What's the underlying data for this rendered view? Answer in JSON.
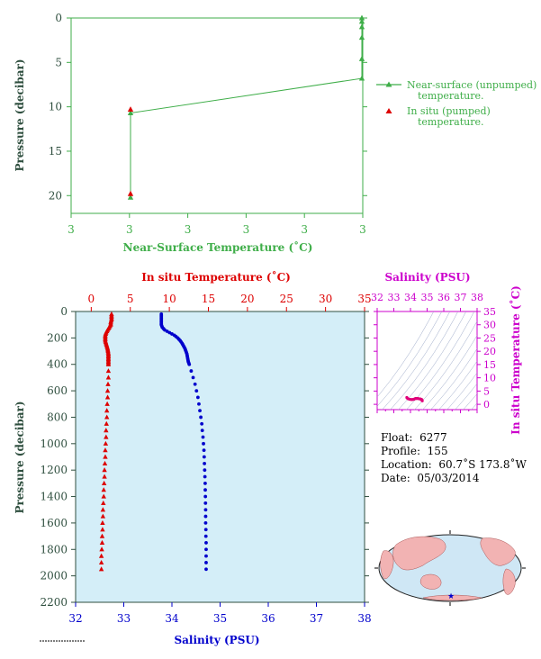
{
  "chart_data": [
    {
      "type": "line",
      "xlabel": "Near-Surface Temperature (˚C)",
      "ylabel": "Pressure (decibar)",
      "x_ticks": [
        "3",
        "3",
        "3",
        "3",
        "3",
        "3"
      ],
      "y_ticks": [
        0,
        5,
        10,
        15,
        20
      ],
      "ylim": [
        0,
        22
      ],
      "y_inverted": true,
      "legend_position": "right",
      "series": [
        {
          "name": "Near-surface (unpumped) temperature.",
          "marker": "triangle",
          "color": "#3fae49",
          "points": [
            [
              1.0,
              0.0
            ],
            [
              1.0,
              0.4
            ],
            [
              1.0,
              1.0
            ],
            [
              1.0,
              2.2
            ],
            [
              1.0,
              4.6
            ],
            [
              1.0,
              6.8
            ],
            [
              0.0,
              10.7
            ],
            [
              0.0,
              20.2
            ]
          ]
        },
        {
          "name": "In situ (pumped) temperature.",
          "marker": "triangle",
          "color": "#dd0000",
          "points": [
            [
              0.0,
              10.3
            ],
            [
              0.0,
              19.8
            ]
          ]
        }
      ]
    },
    {
      "type": "line",
      "ylabel": "Pressure (decibar)",
      "ylim": [
        0,
        2200
      ],
      "y_inverted": true,
      "y_ticks": [
        0,
        200,
        400,
        600,
        800,
        1000,
        1200,
        1400,
        1600,
        1800,
        2000,
        2200
      ],
      "top_axis": {
        "label": "In situ Temperature (˚C)",
        "range": [
          -2,
          35
        ],
        "ticks": [
          0,
          5,
          10,
          15,
          20,
          25,
          30,
          35
        ]
      },
      "bottom_axis": {
        "label": "Salinity (PSU)",
        "range": [
          32,
          38
        ],
        "ticks": [
          32,
          33,
          34,
          35,
          36,
          37,
          38
        ]
      },
      "series": [
        {
          "name": "Temperature",
          "axis": "top",
          "color": "#dd0000",
          "pressure": [
            20,
            40,
            60,
            80,
            100,
            120,
            140,
            160,
            180,
            200,
            220,
            240,
            260,
            280,
            300,
            320,
            340,
            360,
            380,
            400,
            450,
            500,
            550,
            600,
            650,
            700,
            750,
            800,
            850,
            900,
            950,
            1000,
            1050,
            1100,
            1150,
            1200,
            1250,
            1300,
            1350,
            1400,
            1450,
            1500,
            1550,
            1600,
            1650,
            1700,
            1750,
            1800,
            1850,
            1900,
            1950
          ],
          "values": [
            2.6,
            2.6,
            2.6,
            2.5,
            2.5,
            2.3,
            2.1,
            1.9,
            1.8,
            1.8,
            1.8,
            1.9,
            2.0,
            2.1,
            2.15,
            2.2,
            2.2,
            2.2,
            2.2,
            2.2,
            2.2,
            2.2,
            2.15,
            2.1,
            2.1,
            2.05,
            2.0,
            2.0,
            1.95,
            1.9,
            1.9,
            1.85,
            1.8,
            1.8,
            1.75,
            1.7,
            1.7,
            1.65,
            1.6,
            1.6,
            1.55,
            1.5,
            1.5,
            1.45,
            1.45,
            1.4,
            1.4,
            1.35,
            1.3,
            1.3,
            1.3
          ]
        },
        {
          "name": "Salinity",
          "axis": "bottom",
          "color": "#0000cc",
          "pressure": [
            20,
            40,
            60,
            80,
            100,
            120,
            140,
            160,
            180,
            200,
            220,
            240,
            260,
            280,
            300,
            320,
            340,
            360,
            380,
            400,
            450,
            500,
            550,
            600,
            650,
            700,
            750,
            800,
            850,
            900,
            950,
            1000,
            1050,
            1100,
            1150,
            1200,
            1250,
            1300,
            1350,
            1400,
            1450,
            1500,
            1550,
            1600,
            1650,
            1700,
            1750,
            1800,
            1850,
            1900,
            1950
          ],
          "values": [
            33.78,
            33.78,
            33.78,
            33.78,
            33.78,
            33.8,
            33.85,
            33.95,
            34.05,
            34.12,
            34.17,
            34.21,
            34.24,
            34.27,
            34.29,
            34.31,
            34.32,
            34.33,
            34.34,
            34.36,
            34.4,
            34.44,
            34.48,
            34.51,
            34.54,
            34.56,
            34.58,
            34.6,
            34.62,
            34.63,
            34.645,
            34.655,
            34.665,
            34.67,
            34.675,
            34.68,
            34.685,
            34.69,
            34.692,
            34.695,
            34.697,
            34.7,
            34.7,
            34.7,
            34.705,
            34.705,
            34.71,
            34.71,
            34.71,
            34.71,
            34.71
          ]
        }
      ]
    },
    {
      "type": "scatter",
      "xlabel": "Salinity (PSU)",
      "ylabel": "In situ Temperature (˚C)",
      "xlim": [
        32,
        38
      ],
      "ylim": [
        -2,
        35
      ],
      "x_ticks": [
        32,
        33,
        34,
        35,
        36,
        37,
        38
      ],
      "y_ticks": [
        0,
        5,
        10,
        15,
        20,
        25,
        30,
        35
      ],
      "grid": true,
      "color": "#e0007a",
      "points": [
        [
          33.78,
          2.6
        ],
        [
          33.8,
          2.4
        ],
        [
          33.85,
          2.1
        ],
        [
          33.95,
          1.9
        ],
        [
          34.05,
          1.8
        ],
        [
          34.12,
          1.8
        ],
        [
          34.2,
          1.9
        ],
        [
          34.27,
          2.1
        ],
        [
          34.31,
          2.2
        ],
        [
          34.36,
          2.2
        ],
        [
          34.44,
          2.2
        ],
        [
          34.51,
          2.1
        ],
        [
          34.56,
          2.05
        ],
        [
          34.6,
          2.0
        ],
        [
          34.63,
          1.9
        ],
        [
          34.66,
          1.85
        ],
        [
          34.68,
          1.7
        ],
        [
          34.69,
          1.65
        ],
        [
          34.7,
          1.5
        ],
        [
          34.71,
          1.3
        ]
      ]
    }
  ],
  "info": {
    "float_label": "Float:",
    "float_value": "6277",
    "profile_label": "Profile:",
    "profile_value": "155",
    "location_label": "Location:",
    "location_value": "60.7˚S  173.8˚W",
    "date_label": "Date:",
    "date_value": "05/03/2014"
  },
  "colors": {
    "green": "#3fae49",
    "red": "#dd0000",
    "blue": "#0000cc",
    "magenta": "#cc00cc",
    "panel_fill": "#d4eef8",
    "land": "#f2b3b3",
    "ocean": "#cfe7f5",
    "dark_label": "#2f4f3f"
  }
}
